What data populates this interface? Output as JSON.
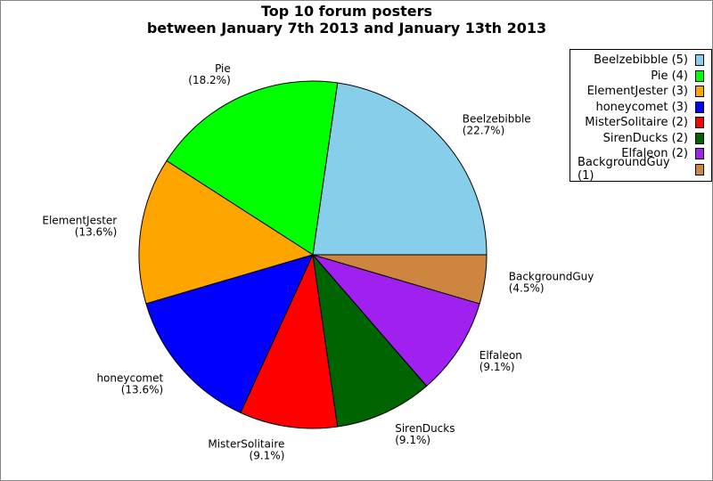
{
  "chart_data": {
    "type": "pie",
    "title": "Top 10 forum posters",
    "subtitle": "between January 7th 2013 and January 13th 2013",
    "legend_position": "top-right",
    "start_angle_deg": 0,
    "direction": "counterclockwise",
    "slices": [
      {
        "label": "Beelzebibble",
        "value": 5,
        "pct": "(22.7%)",
        "legend": "Beelzebibble (5)",
        "color": "#87ceeb"
      },
      {
        "label": "Pie",
        "value": 4,
        "pct": "(18.2%)",
        "legend": "Pie (4)",
        "color": "#00ff00"
      },
      {
        "label": "ElementJester",
        "value": 3,
        "pct": "(13.6%)",
        "legend": "ElementJester (3)",
        "color": "#ffa500"
      },
      {
        "label": "honeycomet",
        "value": 3,
        "pct": "(13.6%)",
        "legend": "honeycomet (3)",
        "color": "#0000ff"
      },
      {
        "label": "MisterSolitaire",
        "value": 2,
        "pct": "(9.1%)",
        "legend": "MisterSolitaire (2)",
        "color": "#ff0000"
      },
      {
        "label": "SirenDucks",
        "value": 2,
        "pct": "(9.1%)",
        "legend": "SirenDucks (2)",
        "color": "#006400"
      },
      {
        "label": "Elfaleon",
        "value": 2,
        "pct": "(9.1%)",
        "legend": "Elfaleon (2)",
        "color": "#a020f0"
      },
      {
        "label": "BackgroundGuy",
        "value": 1,
        "pct": "(4.5%)",
        "legend": "BackgroundGuy (1)",
        "color": "#cd853f"
      }
    ]
  }
}
